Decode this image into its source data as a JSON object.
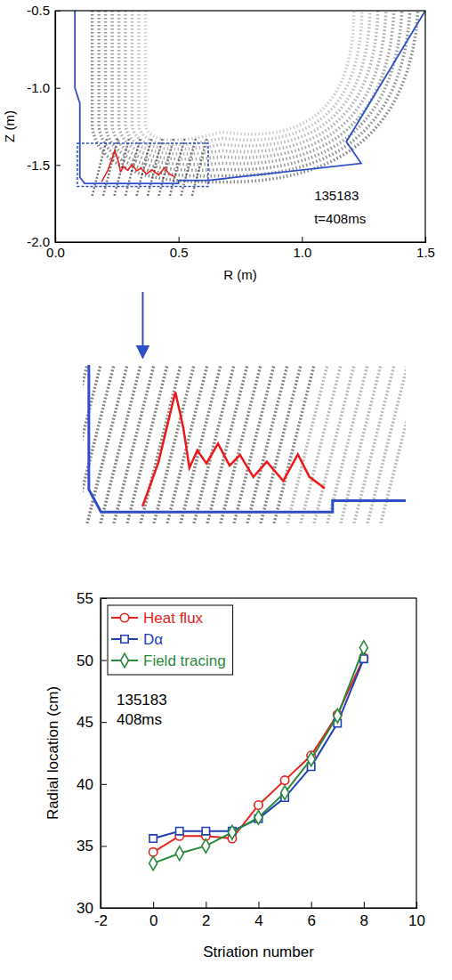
{
  "chart_data": [
    {
      "type": "image",
      "xlabel": "R (m)",
      "ylabel": "Z (m)",
      "xlim": [
        0,
        1.5
      ],
      "ylim": [
        -2,
        -0.5
      ],
      "xticks": [
        {
          "value": 0,
          "label": "0.0"
        },
        0.5,
        {
          "value": 1,
          "label": "1.0"
        },
        1.5
      ],
      "yticks": [
        {
          "value": -2,
          "label": "-2.0"
        },
        -1.5,
        {
          "value": -1,
          "label": "-1.0"
        },
        -0.5
      ],
      "annotations": [
        "135183",
        "t=408ms"
      ],
      "wall": {
        "color": "#2f4fc8",
        "x": [
          0.08,
          0.08,
          0.1,
          0.1,
          0.12,
          0.5,
          0.5,
          0.62,
          1.24,
          1.18,
          1.5
        ],
        "y": [
          -0.5,
          -1.0,
          -1.1,
          -1.58,
          -1.62,
          -1.62,
          -1.6,
          -1.6,
          -1.49,
          -1.35,
          -0.5
        ]
      },
      "trace": {
        "color": "#f01818",
        "x": [
          0.188,
          0.214,
          0.242,
          0.255,
          0.265,
          0.278,
          0.293,
          0.312,
          0.331,
          0.348,
          0.37,
          0.392,
          0.419,
          0.443,
          0.462,
          0.487
        ],
        "y": [
          -1.61,
          -1.533,
          -1.408,
          -1.471,
          -1.542,
          -1.511,
          -1.534,
          -1.499,
          -1.538,
          -1.519,
          -1.558,
          -1.531,
          -1.565,
          -1.518,
          -1.558,
          -1.578
        ]
      },
      "inset": {
        "xlim": [
          0.09,
          0.62
        ],
        "ylim": [
          -1.64,
          -1.36
        ]
      }
    },
    {
      "type": "line",
      "xlabel": "Striation number",
      "ylabel": "Radial location (cm)",
      "x": [
        0,
        1,
        2,
        3,
        4,
        5,
        6,
        7,
        8
      ],
      "xlim": [
        -2,
        10
      ],
      "xticks": [
        -2,
        0,
        2,
        4,
        6,
        8,
        10
      ],
      "ylim": [
        30,
        55
      ],
      "yticks": [
        30,
        35,
        40,
        45,
        50,
        55
      ],
      "legend": "upper left",
      "annotations": [
        "135183",
        "408ms"
      ],
      "series": [
        {
          "name": "Heat flux",
          "color": "#e8211b",
          "marker": "circle",
          "line_style": "solid",
          "values": [
            34.5,
            35.8,
            35.8,
            35.6,
            38.3,
            40.3,
            42.3,
            45.6,
            50.2
          ]
        },
        {
          "name": "Dα",
          "color": "#2040b8",
          "marker": "square",
          "line_style": "solid",
          "values": [
            35.6,
            36.2,
            36.2,
            36.2,
            37.2,
            38.9,
            41.4,
            44.9,
            50.1
          ]
        },
        {
          "name": "Field tracing",
          "color": "#2a8a3c",
          "marker": "diamond",
          "line_style": "solid",
          "values": [
            33.6,
            34.4,
            35.0,
            36.1,
            37.3,
            39.3,
            42.0,
            45.5,
            51.0
          ]
        }
      ]
    }
  ]
}
